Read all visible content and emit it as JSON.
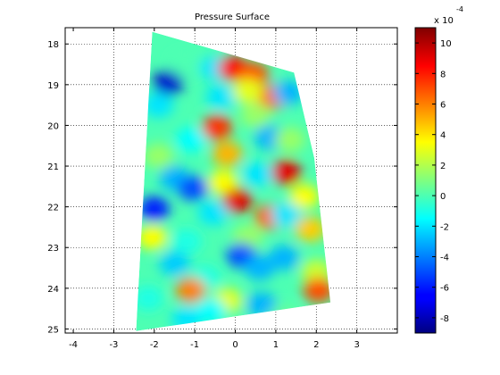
{
  "chart_data": {
    "type": "heatmap",
    "title": "Pressure Surface",
    "xlabel": "",
    "ylabel": "",
    "xlim": [
      -4.2,
      4.0
    ],
    "ylim": [
      17.6,
      25.1
    ],
    "y_reversed": true,
    "x_ticks": [
      -4,
      -3,
      -2,
      -1,
      0,
      1,
      2,
      3
    ],
    "y_ticks": [
      18,
      19,
      20,
      21,
      22,
      23,
      24,
      25
    ],
    "grid": true,
    "grid_style": "dotted",
    "colormap": "jet",
    "colorbar": {
      "range": [
        -9,
        11
      ],
      "ticks": [
        -8,
        -6,
        -4,
        -2,
        0,
        2,
        4,
        6,
        8,
        10
      ],
      "exponent_label": "x 10",
      "exponent": "-4"
    },
    "surface_outline": [
      [
        -2.05,
        17.7
      ],
      [
        1.45,
        18.7
      ],
      [
        1.95,
        20.8
      ],
      [
        2.35,
        24.35
      ],
      [
        -2.45,
        25.05
      ]
    ],
    "features": [
      {
        "x": -1.65,
        "y": 18.95,
        "value": -7.5
      },
      {
        "x": -1.25,
        "y": 18.5,
        "value": 0
      },
      {
        "x": -0.5,
        "y": 18.6,
        "value": -2
      },
      {
        "x": -0.05,
        "y": 18.6,
        "value": 8.5
      },
      {
        "x": 0.45,
        "y": 18.75,
        "value": 7
      },
      {
        "x": 0.9,
        "y": 19.3,
        "value": 6.5
      },
      {
        "x": 1.3,
        "y": 19.2,
        "value": -3
      },
      {
        "x": -1.9,
        "y": 19.5,
        "value": -2
      },
      {
        "x": -0.35,
        "y": 19.3,
        "value": -2
      },
      {
        "x": 0.5,
        "y": 19.75,
        "value": 1.5
      },
      {
        "x": -0.45,
        "y": 20.05,
        "value": 7.5
      },
      {
        "x": -1.1,
        "y": 20.35,
        "value": -1.5
      },
      {
        "x": -0.2,
        "y": 20.7,
        "value": 5
      },
      {
        "x": 0.85,
        "y": 20.3,
        "value": -3
      },
      {
        "x": 1.35,
        "y": 20.35,
        "value": 1.5
      },
      {
        "x": -1.9,
        "y": 20.75,
        "value": 1.5
      },
      {
        "x": 1.25,
        "y": 21.15,
        "value": 9
      },
      {
        "x": 0.55,
        "y": 21.2,
        "value": -2
      },
      {
        "x": -1.5,
        "y": 21.3,
        "value": -3
      },
      {
        "x": -1.05,
        "y": 21.55,
        "value": -5
      },
      {
        "x": -0.3,
        "y": 21.4,
        "value": 3.5
      },
      {
        "x": 0.05,
        "y": 21.85,
        "value": 9
      },
      {
        "x": 1.7,
        "y": 21.75,
        "value": 3.5
      },
      {
        "x": -2.0,
        "y": 22.05,
        "value": -6
      },
      {
        "x": -0.55,
        "y": 22.15,
        "value": -2
      },
      {
        "x": 0.85,
        "y": 22.25,
        "value": 6.5
      },
      {
        "x": 1.25,
        "y": 22.2,
        "value": -2
      },
      {
        "x": 1.85,
        "y": 22.55,
        "value": 4.5
      },
      {
        "x": -2.05,
        "y": 22.75,
        "value": 3.5
      },
      {
        "x": -1.2,
        "y": 22.85,
        "value": -1
      },
      {
        "x": 0.3,
        "y": 22.75,
        "value": 1.5
      },
      {
        "x": 0.15,
        "y": 23.2,
        "value": -5
      },
      {
        "x": 1.2,
        "y": 23.25,
        "value": -3
      },
      {
        "x": -1.5,
        "y": 23.4,
        "value": -2.5
      },
      {
        "x": 0.6,
        "y": 23.5,
        "value": -3
      },
      {
        "x": 2.0,
        "y": 23.6,
        "value": 2.5
      },
      {
        "x": -0.75,
        "y": 23.75,
        "value": -1
      },
      {
        "x": -1.1,
        "y": 24.05,
        "value": 6
      },
      {
        "x": 2.05,
        "y": 24.05,
        "value": 7
      },
      {
        "x": -2.15,
        "y": 24.25,
        "value": -1
      },
      {
        "x": -0.2,
        "y": 24.3,
        "value": 3
      },
      {
        "x": 0.65,
        "y": 24.4,
        "value": -3
      },
      {
        "x": -1.2,
        "y": 24.75,
        "value": -2
      },
      {
        "x": -0.6,
        "y": 24.55,
        "value": -1.5
      },
      {
        "x": 1.2,
        "y": 24.7,
        "value": 0.5
      },
      {
        "x": 0.3,
        "y": 19.15,
        "value": 3
      }
    ]
  }
}
